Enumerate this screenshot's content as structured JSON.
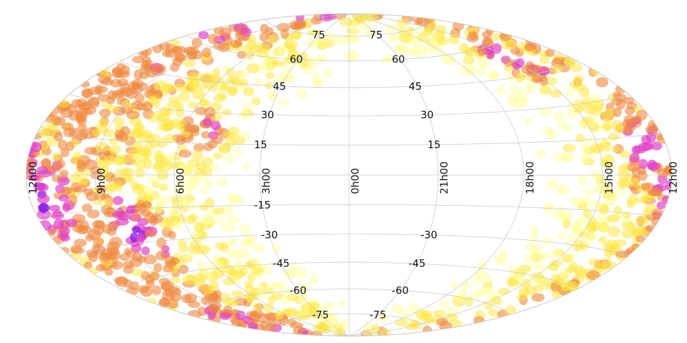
{
  "chart_data": {
    "type": "map",
    "projection": "hammer-aitoff",
    "coordinate_system": "equatorial",
    "colormap": "plasma",
    "colors": {
      "high": "#2a0bd8",
      "mid_high": "#8a1be8",
      "mid": "#e040c8",
      "mid_low": "#f08a40",
      "low": "#ffe640",
      "very_low": "#ffffa0"
    },
    "ra_tick_labels": [
      "12h00",
      "9h00",
      "6h00",
      "3h00",
      "0h00",
      "21h00",
      "18h00",
      "15h00",
      "12h00"
    ],
    "ra_tick_values_hours": [
      12,
      9,
      6,
      3,
      0,
      21,
      18,
      15,
      12
    ],
    "dec_tick_labels_north": [
      "75",
      "60",
      "45",
      "30",
      "15"
    ],
    "dec_tick_labels_south": [
      "-15",
      "-30",
      "-45",
      "-60",
      "-75"
    ],
    "dec_tick_values_north": [
      75,
      60,
      45,
      30,
      15
    ],
    "dec_tick_values_south": [
      -15,
      -30,
      -45,
      -60,
      -75
    ],
    "dense_regions": [
      {
        "ra_h": 13.0,
        "dec": 10,
        "level": "high"
      },
      {
        "ra_h": 8.0,
        "dec": -25,
        "level": "high"
      },
      {
        "ra_h": 5.0,
        "dec": 20,
        "level": "high"
      },
      {
        "ra_h": 15.0,
        "dec": 55,
        "level": "high"
      },
      {
        "ra_h": 11.5,
        "dec": -10,
        "level": "mid_high"
      }
    ]
  }
}
